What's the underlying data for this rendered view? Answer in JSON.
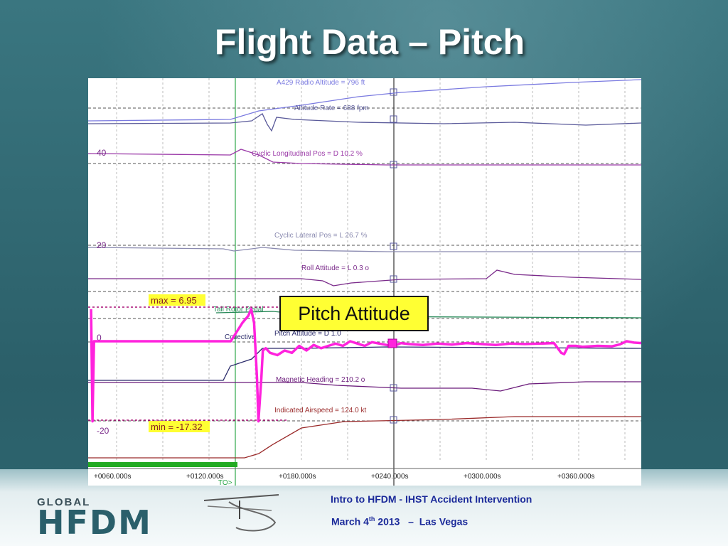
{
  "slide": {
    "title": "Flight Data – Pitch",
    "callout": "Pitch Attitude",
    "footer_line1": "Intro to HFDM  - IHST Accident Intervention",
    "footer_date_prefix": "March 4",
    "footer_date_sup": "th",
    "footer_date_suffix": " 2013   –  Las Vegas",
    "logo_small": "GLOBAL",
    "logo_large": "HFDM"
  },
  "colors": {
    "pitch": "#ff22dd",
    "radio_alt": "#7a7ae0",
    "alt_rate": "#5a5a9a",
    "cyclic_long": "#9b3aa8",
    "cyclic_lat": "#8a8ab0",
    "roll": "#7a2a8a",
    "tail_rotor": "#2a8a5a",
    "collective": "#2a2a6a",
    "heading": "#6a1a7a",
    "airspeed": "#9a2a2a",
    "time_bar": "#22aa22"
  },
  "chart_data": {
    "type": "line",
    "xlabel": "",
    "ylabel": "",
    "x_ticks": [
      "+0060.000s",
      "+0120.000s",
      "+0180.000s",
      "+0240.000s",
      "+0300.000s",
      "+0360.000s"
    ],
    "y_ticks": [
      "40",
      "20",
      "0",
      "-20"
    ],
    "marker_label": "TO>",
    "annotations": {
      "max": "max = 6.95",
      "min": "min = -17.32"
    },
    "parameter_labels": [
      "A429 Radio Altitude = 796 ft",
      "Altitude Rate = 688 fpm",
      "Cyclic Longitudinal Pos = D 10.2 %",
      "Cyclic Lateral Pos = L 26.7 %",
      "Roll Attitude = L 0.3 o",
      "Tail Rotor Pedal",
      "Collective",
      "Pitch Attitude = D 1.0",
      "Magnetic Heading = 210.2 o",
      "Indicated Airspeed = 124.0 kt"
    ],
    "x_range": [
      30,
      410
    ],
    "pitch_series": {
      "name": "Pitch Attitude",
      "unit": "deg",
      "x": [
        32,
        33,
        34,
        60,
        90,
        120,
        128,
        132,
        136,
        140,
        142,
        144,
        146,
        147,
        149,
        150,
        152,
        155,
        160,
        165,
        170,
        175,
        180,
        185,
        190,
        195,
        200,
        205,
        210,
        215,
        220,
        225,
        230,
        235,
        240,
        245,
        250,
        260,
        270,
        280,
        290,
        300,
        310,
        320,
        330,
        340,
        350,
        355,
        357,
        360,
        365,
        370,
        380,
        390,
        395,
        400,
        405,
        410
      ],
      "y": [
        6.95,
        -17.32,
        0,
        0,
        0,
        0,
        0,
        2,
        4,
        5.5,
        6.95,
        4,
        -8,
        -17.32,
        -8,
        -2,
        -1.5,
        -2.5,
        -3,
        -2,
        -2.5,
        -1,
        -2,
        -0.8,
        -1.5,
        -1,
        -0.5,
        -1,
        0,
        -0.5,
        -1,
        -0.2,
        -0.5,
        -0.8,
        -1,
        -0.4,
        -0.6,
        -0.8,
        -0.5,
        -0.7,
        -0.4,
        -0.6,
        -0.8,
        -0.5,
        -0.6,
        -0.5,
        -0.4,
        -2.5,
        -2.8,
        -1,
        -1,
        -1.2,
        -1,
        -1.1,
        -0.7,
        0,
        -0.3,
        -0.4
      ]
    }
  }
}
